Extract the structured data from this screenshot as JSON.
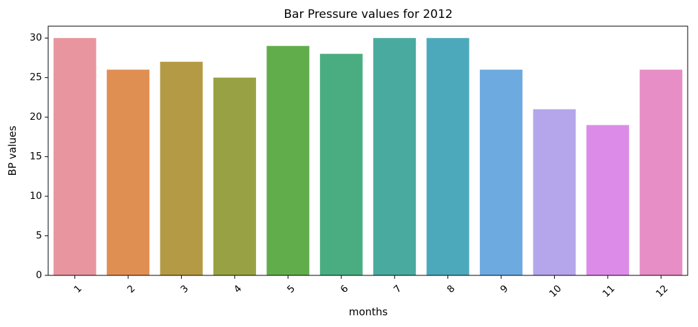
{
  "chart_data": {
    "type": "bar",
    "title": "Bar Pressure values for 2012",
    "xlabel": "months",
    "ylabel": "BP values",
    "categories": [
      "1",
      "2",
      "3",
      "4",
      "5",
      "6",
      "7",
      "8",
      "9",
      "10",
      "11",
      "12"
    ],
    "values": [
      30,
      26,
      27,
      25,
      29,
      28,
      30,
      30,
      26,
      21,
      19,
      26
    ],
    "colors": [
      "#e8959f",
      "#e08f53",
      "#b59a45",
      "#98a244",
      "#62ad4b",
      "#4aad82",
      "#49aaa0",
      "#4ba9bb",
      "#6caae0",
      "#b5a6ec",
      "#dc8ce8",
      "#e68ec5"
    ],
    "ylim": [
      0,
      31.5
    ],
    "yticks": [
      0,
      5,
      10,
      15,
      20,
      25,
      30
    ],
    "grid": false,
    "legend": "none"
  }
}
